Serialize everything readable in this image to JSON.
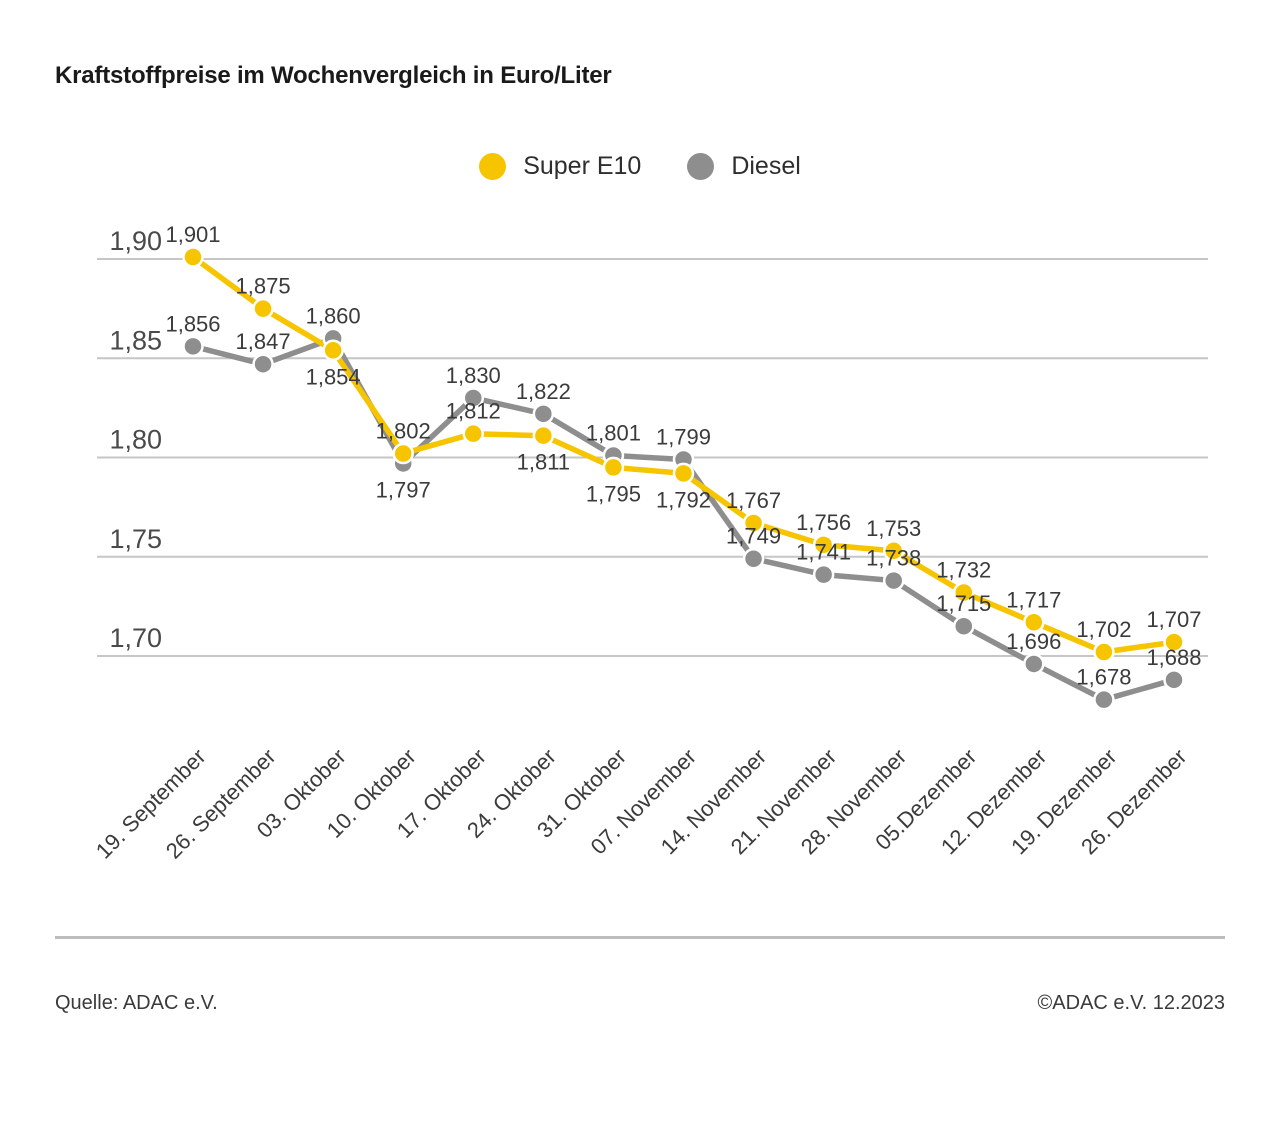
{
  "header": {
    "title": "Kraftstoffpreise im Wochenvergleich in Euro/Liter"
  },
  "legend": [
    {
      "label": "Super E10",
      "color": "#F6C500"
    },
    {
      "label": "Diesel",
      "color": "#8E8E8E"
    }
  ],
  "chart_data": {
    "type": "line",
    "title": "Kraftstoffpreise im Wochenvergleich in Euro/Liter",
    "unit": "Euro/Liter",
    "legend_position": "top",
    "grid": "horizontal",
    "categories": [
      "19. September",
      "26. September",
      "03. Oktober",
      "10. Oktober",
      "17. Oktober",
      "24. Oktober",
      "31. Oktober",
      "07. November",
      "14. November",
      "21. November",
      "28. November",
      "05.Dezember",
      "12. Dezember",
      "19. Dezember",
      "26. Dezember"
    ],
    "y_axis": {
      "tick_labels": [
        "1,90",
        "1,85",
        "1,80",
        "1,75",
        "1,70"
      ],
      "tick_values": [
        1.9,
        1.85,
        1.8,
        1.75,
        1.7
      ],
      "range": [
        1.665,
        1.915
      ]
    },
    "series": [
      {
        "name": "Super E10",
        "color": "#F6C500",
        "values": [
          1.901,
          1.875,
          1.854,
          1.802,
          1.812,
          1.811,
          1.795,
          1.792,
          1.767,
          1.756,
          1.753,
          1.732,
          1.717,
          1.702,
          1.707
        ],
        "labels": [
          "1,901",
          "1,875",
          "1,854",
          "1,802",
          "1,812",
          "1,811",
          "1,795",
          "1,792",
          "1,767",
          "1,756",
          "1,753",
          "1,732",
          "1,717",
          "1,702",
          "1,707"
        ],
        "label_pos": [
          "above",
          "above",
          "below",
          "above",
          "above",
          "below",
          "below",
          "below",
          "above",
          "above",
          "above",
          "above",
          "above",
          "above",
          "above"
        ]
      },
      {
        "name": "Diesel",
        "color": "#8E8E8E",
        "values": [
          1.856,
          1.847,
          1.86,
          1.797,
          1.83,
          1.822,
          1.801,
          1.799,
          1.749,
          1.741,
          1.738,
          1.715,
          1.696,
          1.678,
          1.688
        ],
        "labels": [
          "1,856",
          "1,847",
          "1,860",
          "1,797",
          "1,830",
          "1,822",
          "1,801",
          "1,799",
          "1,749",
          "1,741",
          "1,738",
          "1,715",
          "1,696",
          "1,678",
          "1,688"
        ],
        "label_pos": [
          "above",
          "above",
          "above",
          "below",
          "above",
          "above",
          "above",
          "above",
          "above",
          "above",
          "above",
          "above",
          "above",
          "above",
          "above"
        ]
      }
    ]
  },
  "footer": {
    "source": "Quelle: ADAC e.V.",
    "copyright": "©ADAC e.V. 12.2023"
  }
}
